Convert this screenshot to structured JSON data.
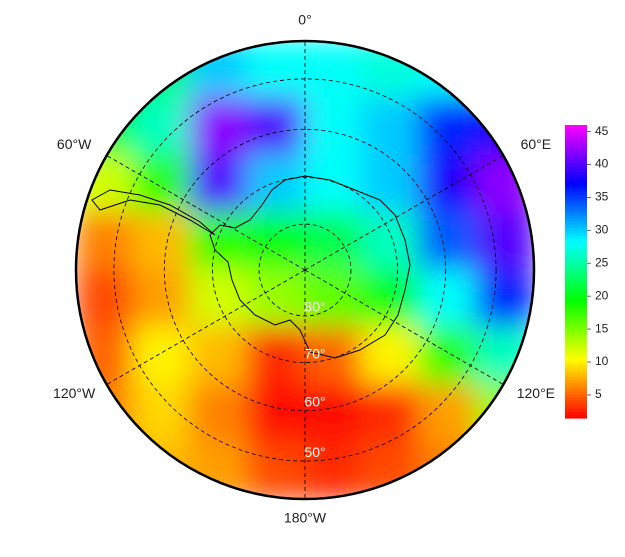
{
  "chart_data": {
    "type": "polar_map",
    "colormap": "rainbow",
    "meridians": [
      {
        "value": 0,
        "label": "0°"
      },
      {
        "value": 60,
        "label": "60°E"
      },
      {
        "value": 120,
        "label": "120°E"
      },
      {
        "value": 180,
        "label": "180°W"
      },
      {
        "value": -120,
        "label": "120°W"
      },
      {
        "value": -60,
        "label": "60°W"
      }
    ],
    "parallels": [
      {
        "value": 80,
        "label": "80°"
      },
      {
        "value": 70,
        "label": "70°"
      },
      {
        "value": 60,
        "label": "60°"
      },
      {
        "value": 50,
        "label": "50°"
      }
    ],
    "field": [
      [
        20,
        24,
        30,
        28,
        28,
        27,
        28,
        30
      ],
      [
        22,
        26,
        42,
        40,
        28,
        30,
        36,
        38
      ],
      [
        12,
        18,
        40,
        30,
        28,
        30,
        38,
        42
      ],
      [
        6,
        8,
        18,
        20,
        22,
        26,
        34,
        40
      ],
      [
        4,
        7,
        12,
        14,
        16,
        20,
        28,
        36
      ],
      [
        5,
        10,
        8,
        3,
        5,
        10,
        18,
        26
      ],
      [
        6,
        9,
        6,
        2,
        2,
        3,
        7,
        14
      ],
      [
        6,
        8,
        7,
        4,
        3,
        4,
        6,
        8
      ]
    ],
    "clim": [
      1.5,
      46
    ],
    "cticks": [
      5,
      10,
      15,
      20,
      25,
      30,
      35,
      40,
      45
    ]
  }
}
